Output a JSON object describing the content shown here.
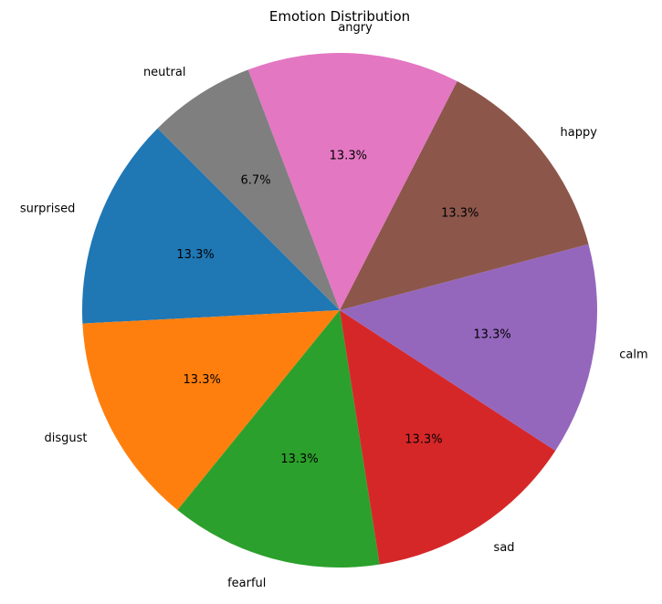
{
  "chart_data": {
    "type": "pie",
    "title": "Emotion Distribution",
    "start_angle_deg": 135,
    "direction": "counterclockwise",
    "categories": [
      "surprised",
      "disgust",
      "fearful",
      "sad",
      "calm",
      "happy",
      "angry",
      "neutral"
    ],
    "values": [
      13.3,
      13.3,
      13.3,
      13.3,
      13.3,
      13.3,
      13.3,
      6.7
    ],
    "labels": [
      "13.3%",
      "13.3%",
      "13.3%",
      "13.3%",
      "13.3%",
      "13.3%",
      "13.3%",
      "6.7%"
    ],
    "colors": [
      "#1f77b4",
      "#ff7f0e",
      "#2ca02c",
      "#d62728",
      "#9467bd",
      "#8c564b",
      "#e377c2",
      "#7f7f7f"
    ]
  }
}
